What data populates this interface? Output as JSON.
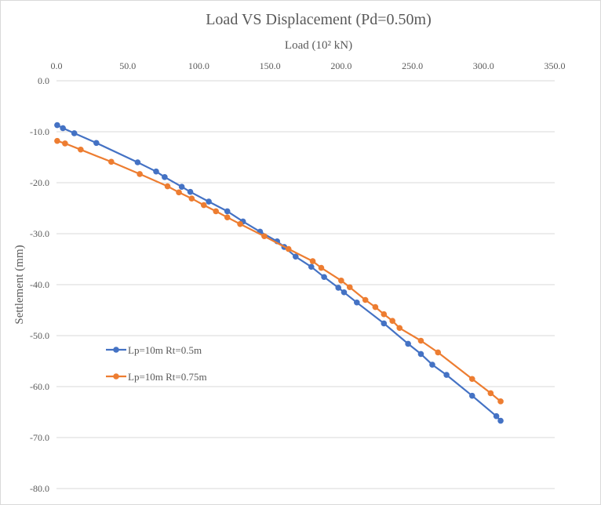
{
  "chart_data": {
    "type": "line",
    "title": "Load VS Displacement  (Pd=0.50m)",
    "xlabel": "Load (10² kN)",
    "ylabel": "Settlement (mm)",
    "xlim": [
      0,
      350
    ],
    "ylim": [
      -80,
      0
    ],
    "x_ticks": [
      0,
      50,
      100,
      150,
      200,
      250,
      300,
      350
    ],
    "x_tick_labels": [
      "0.0",
      "50.0",
      "100.0",
      "150.0",
      "200.0",
      "250.0",
      "300.0",
      "350.0"
    ],
    "y_ticks": [
      0,
      -10,
      -20,
      -30,
      -40,
      -50,
      -60,
      -70,
      -80
    ],
    "y_tick_labels": [
      "0.0",
      "-10.0",
      "-20.0",
      "-30.0",
      "-40.0",
      "-50.0",
      "-60.0",
      "-70.0",
      "-80.0"
    ],
    "x_axis_position": "top",
    "grid": "horizontal",
    "legend_position": "lower-left",
    "series": [
      {
        "name": "Lp=10m Rt=0.5m",
        "color": "#4472c4",
        "x": [
          0.5,
          4.5,
          12.5,
          28,
          57,
          70,
          76,
          88,
          94,
          107,
          120,
          131,
          143,
          155,
          160,
          168,
          179,
          188,
          198,
          202,
          211,
          230,
          247,
          256,
          264,
          274,
          292,
          309,
          312
        ],
        "y": [
          -8.7,
          -9.3,
          -10.3,
          -12.2,
          -16.0,
          -17.8,
          -18.9,
          -20.8,
          -21.8,
          -23.7,
          -25.6,
          -27.6,
          -29.6,
          -31.5,
          -32.6,
          -34.5,
          -36.5,
          -38.5,
          -40.6,
          -41.5,
          -43.5,
          -47.6,
          -51.6,
          -53.6,
          -55.7,
          -57.7,
          -61.8,
          -65.8,
          -66.7
        ]
      },
      {
        "name": "Lp=10m Rt=0.75m",
        "color": "#ed7d31",
        "x": [
          0.5,
          6,
          17,
          38.5,
          58.5,
          78,
          86,
          95,
          103.5,
          112,
          120,
          129,
          146,
          163,
          180,
          186,
          200,
          206,
          217,
          224,
          230,
          236,
          241,
          256,
          268,
          292,
          305,
          312
        ],
        "y": [
          -11.8,
          -12.3,
          -13.5,
          -15.9,
          -18.3,
          -20.7,
          -21.9,
          -23.1,
          -24.4,
          -25.6,
          -26.8,
          -28.1,
          -30.5,
          -33.0,
          -35.4,
          -36.7,
          -39.2,
          -40.5,
          -43.0,
          -44.4,
          -45.8,
          -47.1,
          -48.5,
          -51.0,
          -53.3,
          -58.5,
          -61.3,
          -62.9
        ]
      }
    ]
  }
}
